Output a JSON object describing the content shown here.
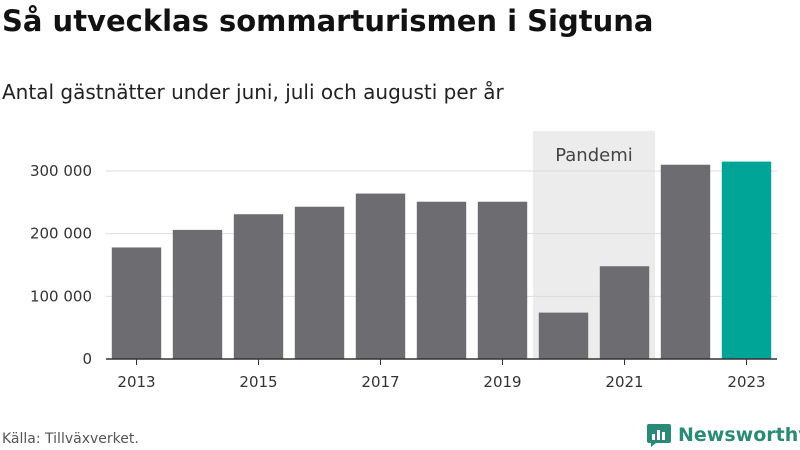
{
  "title": "Så utvecklas sommarturismen i Sigtuna",
  "subtitle": "Antal gästnätter under juni, juli och augusti per år",
  "source": "Källa: Tillväxverket.",
  "brand": "Newsworthy",
  "chart_data": {
    "type": "bar",
    "categories": [
      "2013",
      "2014",
      "2015",
      "2016",
      "2017",
      "2018",
      "2019",
      "2020",
      "2021",
      "2022",
      "2023"
    ],
    "values": [
      178000,
      206000,
      231000,
      243000,
      264000,
      251000,
      251000,
      74000,
      148000,
      310000,
      315000
    ],
    "x_tick_labels": [
      "2013",
      "2015",
      "2017",
      "2019",
      "2021",
      "2023"
    ],
    "y_ticks": [
      0,
      100000,
      200000,
      300000
    ],
    "y_tick_labels": [
      "0",
      "100 000",
      "200 000",
      "300 000"
    ],
    "ylim": [
      0,
      300000
    ],
    "highlight": {
      "category": "2023",
      "color": "#00a598"
    },
    "bar_color": "#6d6c71",
    "annotation": {
      "label": "Pandemi",
      "from": "2020",
      "to": "2021",
      "color": "#ececec"
    },
    "grid": true,
    "legend": "none"
  }
}
